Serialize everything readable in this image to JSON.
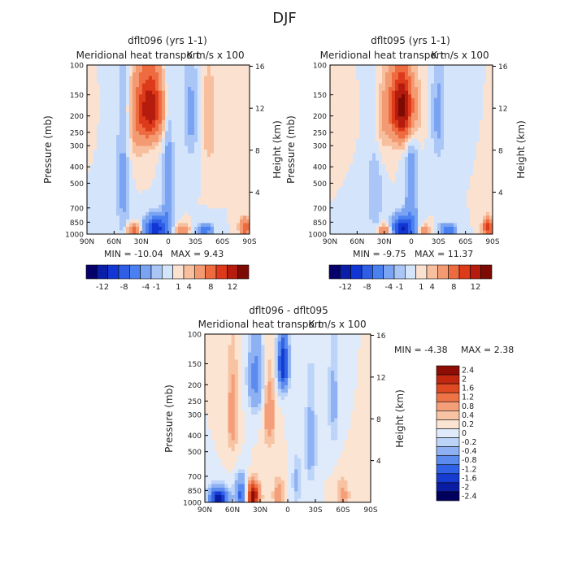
{
  "title": "DJF",
  "colors": {
    "full": [
      "#08006a",
      "#0a1fa8",
      "#1236d4",
      "#2e5de6",
      "#4a80ef",
      "#7aa3f2",
      "#a9c6f6",
      "#d4e5fb",
      "#fbe1d0",
      "#f7bf9e",
      "#f39a72",
      "#ee6a3f",
      "#dc3a1a",
      "#b51c0e",
      "#7e0a04"
    ],
    "diff": [
      "#02005d",
      "#0a1da2",
      "#163bd1",
      "#2f62e6",
      "#5b8bef",
      "#8eb1f4",
      "#bcd4f8",
      "#dfeafb",
      "#fbe4d2",
      "#f7c3a3",
      "#f49f79",
      "#ee7448",
      "#e04a22",
      "#c1280f",
      "#8e0d04"
    ]
  },
  "chart_data": [
    {
      "type": "heatmap",
      "id": "dflt096",
      "title": "dflt096 (yrs 1-1)",
      "subtitle": "Meridional heat transport",
      "units": "K m/s x 100",
      "ylabel": "Pressure (mb)",
      "y2label": "Height (km)",
      "min_text": "MIN =  -10.04",
      "max_text": "MAX =    9.43",
      "x_ticks": [
        "90N",
        "60N",
        "30N",
        "0",
        "30S",
        "60S",
        "90S"
      ],
      "y_ticks": [
        "100",
        "150",
        "200",
        "250",
        "300",
        "400",
        "500",
        "700",
        "850",
        "1000"
      ],
      "y2_ticks": [
        "16",
        "12",
        "8",
        "4"
      ],
      "levels": [
        "-12",
        "-8",
        "-4",
        "-1",
        "1",
        "4",
        "8",
        "12"
      ],
      "features": [
        {
          "lat": 20,
          "p": 180,
          "value": 9.4,
          "lat_width": 14,
          "p_width": 90
        },
        {
          "lat": 14,
          "p": 930,
          "value": -10.0,
          "lat_width": 12,
          "p_width": 150
        },
        {
          "lat": 38,
          "p": 950,
          "value": 5.5,
          "lat_width": 8,
          "p_width": 80
        },
        {
          "lat": -40,
          "p": 950,
          "value": -6.0,
          "lat_width": 9,
          "p_width": 80
        },
        {
          "lat": -15,
          "p": 950,
          "value": 4.0,
          "lat_width": 8,
          "p_width": 70
        },
        {
          "lat": -85,
          "p": 920,
          "value": 6.0,
          "lat_width": 6,
          "p_width": 120
        },
        {
          "lat": 50,
          "p": 500,
          "value": -2.5,
          "lat_width": 7,
          "p_width": 550
        },
        {
          "lat": 0,
          "p": 600,
          "value": -4.0,
          "lat_width": 6,
          "p_width": 450
        },
        {
          "lat": 35,
          "p": 220,
          "value": 2.0,
          "lat_width": 10,
          "p_width": 150
        },
        {
          "lat": -25,
          "p": 200,
          "value": -2.5,
          "lat_width": 8,
          "p_width": 150
        },
        {
          "lat": -45,
          "p": 220,
          "value": 2.0,
          "lat_width": 8,
          "p_width": 150
        }
      ]
    },
    {
      "type": "heatmap",
      "id": "dflt095",
      "title": "dflt095 (yrs 1-1)",
      "subtitle": "Meridional heat transport",
      "units": "K m/s x 100",
      "ylabel": "Pressure (mb)",
      "y2label": "Height (km)",
      "min_text": "MIN =   -9.75",
      "max_text": "MAX =   11.37",
      "x_ticks": [
        "90N",
        "60N",
        "30N",
        "0",
        "30S",
        "60S",
        "90S"
      ],
      "y_ticks": [
        "100",
        "150",
        "200",
        "250",
        "300",
        "400",
        "500",
        "700",
        "850",
        "1000"
      ],
      "y2_ticks": [
        "16",
        "12",
        "8",
        "4"
      ],
      "levels": [
        "-12",
        "-8",
        "-4",
        "-1",
        "1",
        "4",
        "8",
        "12"
      ],
      "features": [
        {
          "lat": 10,
          "p": 180,
          "value": 11.3,
          "lat_width": 14,
          "p_width": 90
        },
        {
          "lat": 10,
          "p": 930,
          "value": -9.7,
          "lat_width": 12,
          "p_width": 150
        },
        {
          "lat": 30,
          "p": 950,
          "value": 5.0,
          "lat_width": 8,
          "p_width": 80
        },
        {
          "lat": -40,
          "p": 950,
          "value": -6.5,
          "lat_width": 9,
          "p_width": 80
        },
        {
          "lat": -15,
          "p": 950,
          "value": 3.0,
          "lat_width": 8,
          "p_width": 70
        },
        {
          "lat": -85,
          "p": 920,
          "value": 7.0,
          "lat_width": 6,
          "p_width": 120
        },
        {
          "lat": 40,
          "p": 500,
          "value": -2.0,
          "lat_width": 8,
          "p_width": 550
        },
        {
          "lat": 0,
          "p": 600,
          "value": -3.5,
          "lat_width": 7,
          "p_width": 450
        },
        {
          "lat": 35,
          "p": 220,
          "value": 2.0,
          "lat_width": 10,
          "p_width": 150
        },
        {
          "lat": -30,
          "p": 200,
          "value": -2.5,
          "lat_width": 8,
          "p_width": 150
        }
      ]
    },
    {
      "type": "heatmap",
      "id": "diff",
      "title": "dflt096 - dflt095",
      "subtitle": "Meridional heat transport",
      "units": "K m/s x 100",
      "ylabel": "Pressure (mb)",
      "y2label": "Height (km)",
      "min_text": "MIN =   -4.38",
      "max_text": "MAX =    2.38",
      "x_ticks": [
        "90N",
        "60N",
        "30N",
        "0",
        "30S",
        "60S",
        "90S"
      ],
      "y_ticks": [
        "100",
        "150",
        "200",
        "250",
        "300",
        "400",
        "500",
        "700",
        "850",
        "1000"
      ],
      "y2_ticks": [
        "16",
        "12",
        "8",
        "4"
      ],
      "levels": [
        "2.4",
        "2",
        "1.6",
        "1.2",
        "0.8",
        "0.4",
        "0.2",
        "0",
        "-0.2",
        "-0.4",
        "-0.8",
        "-1.2",
        "-1.6",
        "-2",
        "-2.4"
      ],
      "features": [
        {
          "lat": 38,
          "p": 920,
          "value": 2.4,
          "lat_width": 7,
          "p_width": 160
        },
        {
          "lat": 75,
          "p": 950,
          "value": -2.2,
          "lat_width": 10,
          "p_width": 140
        },
        {
          "lat": 50,
          "p": 900,
          "value": -1.4,
          "lat_width": 7,
          "p_width": 200
        },
        {
          "lat": 5,
          "p": 150,
          "value": -2.0,
          "lat_width": 6,
          "p_width": 60
        },
        {
          "lat": 35,
          "p": 180,
          "value": -1.0,
          "lat_width": 8,
          "p_width": 100
        },
        {
          "lat": 20,
          "p": 300,
          "value": 0.7,
          "lat_width": 6,
          "p_width": 150
        },
        {
          "lat": 60,
          "p": 300,
          "value": 0.6,
          "lat_width": 6,
          "p_width": 200
        },
        {
          "lat": -25,
          "p": 450,
          "value": -0.6,
          "lat_width": 6,
          "p_width": 300
        },
        {
          "lat": -50,
          "p": 250,
          "value": -0.5,
          "lat_width": 6,
          "p_width": 200
        },
        {
          "lat": 10,
          "p": 900,
          "value": 0.6,
          "lat_width": 6,
          "p_width": 200
        },
        {
          "lat": -10,
          "p": 750,
          "value": -0.5,
          "lat_width": 5,
          "p_width": 250
        },
        {
          "lat": -60,
          "p": 900,
          "value": 0.5,
          "lat_width": 7,
          "p_width": 200
        }
      ]
    }
  ]
}
